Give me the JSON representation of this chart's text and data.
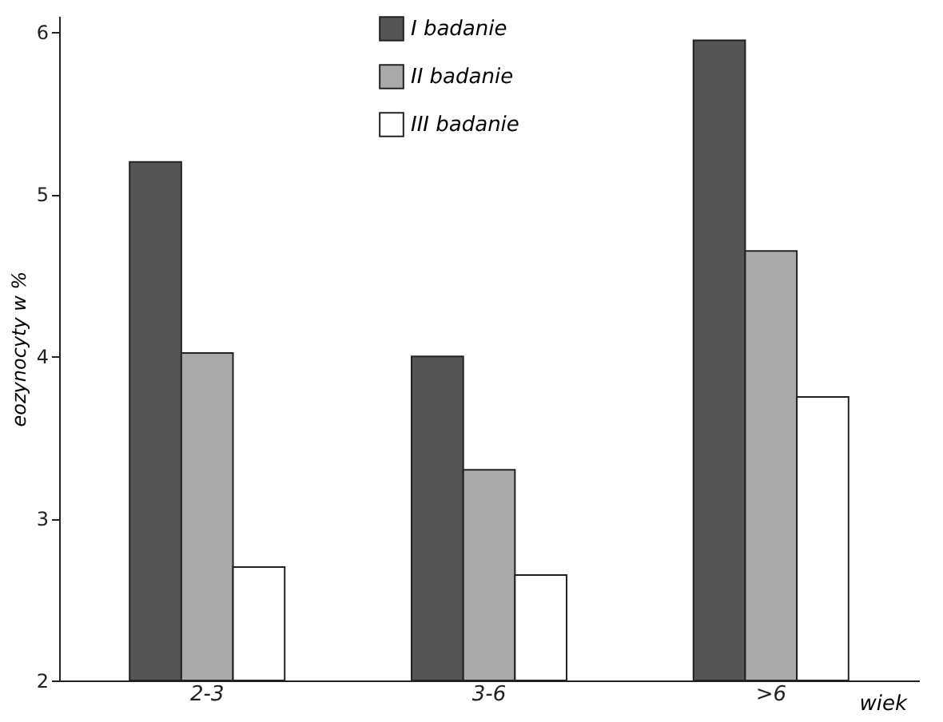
{
  "chart_data": {
    "type": "bar",
    "categories": [
      "2-3",
      "3-6",
      ">6"
    ],
    "xlabel": "wiek",
    "ylabel": "eozynocyty w %",
    "series": [
      {
        "name": "I badanie",
        "color": "#555555",
        "values": [
          5.2,
          4.0,
          5.95
        ]
      },
      {
        "name": "II badanie",
        "color": "#aaaaaa",
        "values": [
          4.02,
          3.3,
          4.65
        ]
      },
      {
        "name": "III badanie",
        "color": "#ffffff",
        "values": [
          2.7,
          2.65,
          3.75
        ]
      }
    ],
    "ylim": [
      2,
      6.1
    ],
    "yticks": [
      2,
      3,
      4,
      5,
      6
    ],
    "grid": false,
    "legend": "top"
  }
}
